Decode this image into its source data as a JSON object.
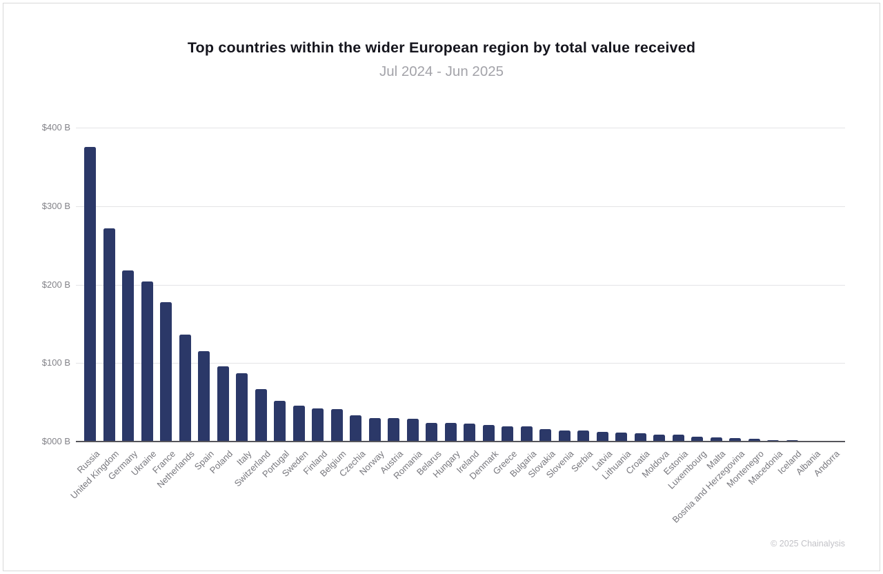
{
  "chart_data": {
    "type": "bar",
    "title": "Top countries within the wider European region by total value received",
    "subtitle": "Jul 2024 - Jun 2025",
    "footer": "© 2025 Chainalysis",
    "ylim": [
      0,
      400
    ],
    "ytick_labels": [
      "$400 B",
      "$300 B",
      "$200 B",
      "$100 B",
      "$000 B"
    ],
    "ytick_values": [
      400,
      300,
      200,
      100,
      0
    ],
    "grid": true,
    "legend_position": "none",
    "bar_color": "#2b3868",
    "categories": [
      "Russia",
      "United Kingdom",
      "Germany",
      "Ukraine",
      "France",
      "Netherlands",
      "Spain",
      "Poland",
      "Italy",
      "Switzerland",
      "Portugal",
      "Sweden",
      "Finland",
      "Belgium",
      "Czechia",
      "Norway",
      "Austria",
      "Romania",
      "Belarus",
      "Hungary",
      "Ireland",
      "Denmark",
      "Greece",
      "Bulgaria",
      "Slovakia",
      "Slovenia",
      "Serbia",
      "Latvia",
      "Lithuania",
      "Croatia",
      "Moldova",
      "Estonia",
      "Luxembourg",
      "Malta",
      "Bosnia and Herzegovina",
      "Montenegro",
      "Macedonia",
      "Iceland",
      "Albania",
      "Andorra"
    ],
    "values": [
      375,
      272,
      218,
      204,
      178,
      136,
      115,
      96,
      87,
      67,
      52,
      46,
      42,
      41,
      33,
      30,
      30,
      29,
      24,
      24,
      23,
      21,
      19,
      19,
      15.5,
      14.5,
      14,
      12,
      11,
      10.5,
      9,
      8.5,
      6,
      5.5,
      4,
      3.5,
      2,
      1.5,
      1.3,
      0.3
    ]
  }
}
